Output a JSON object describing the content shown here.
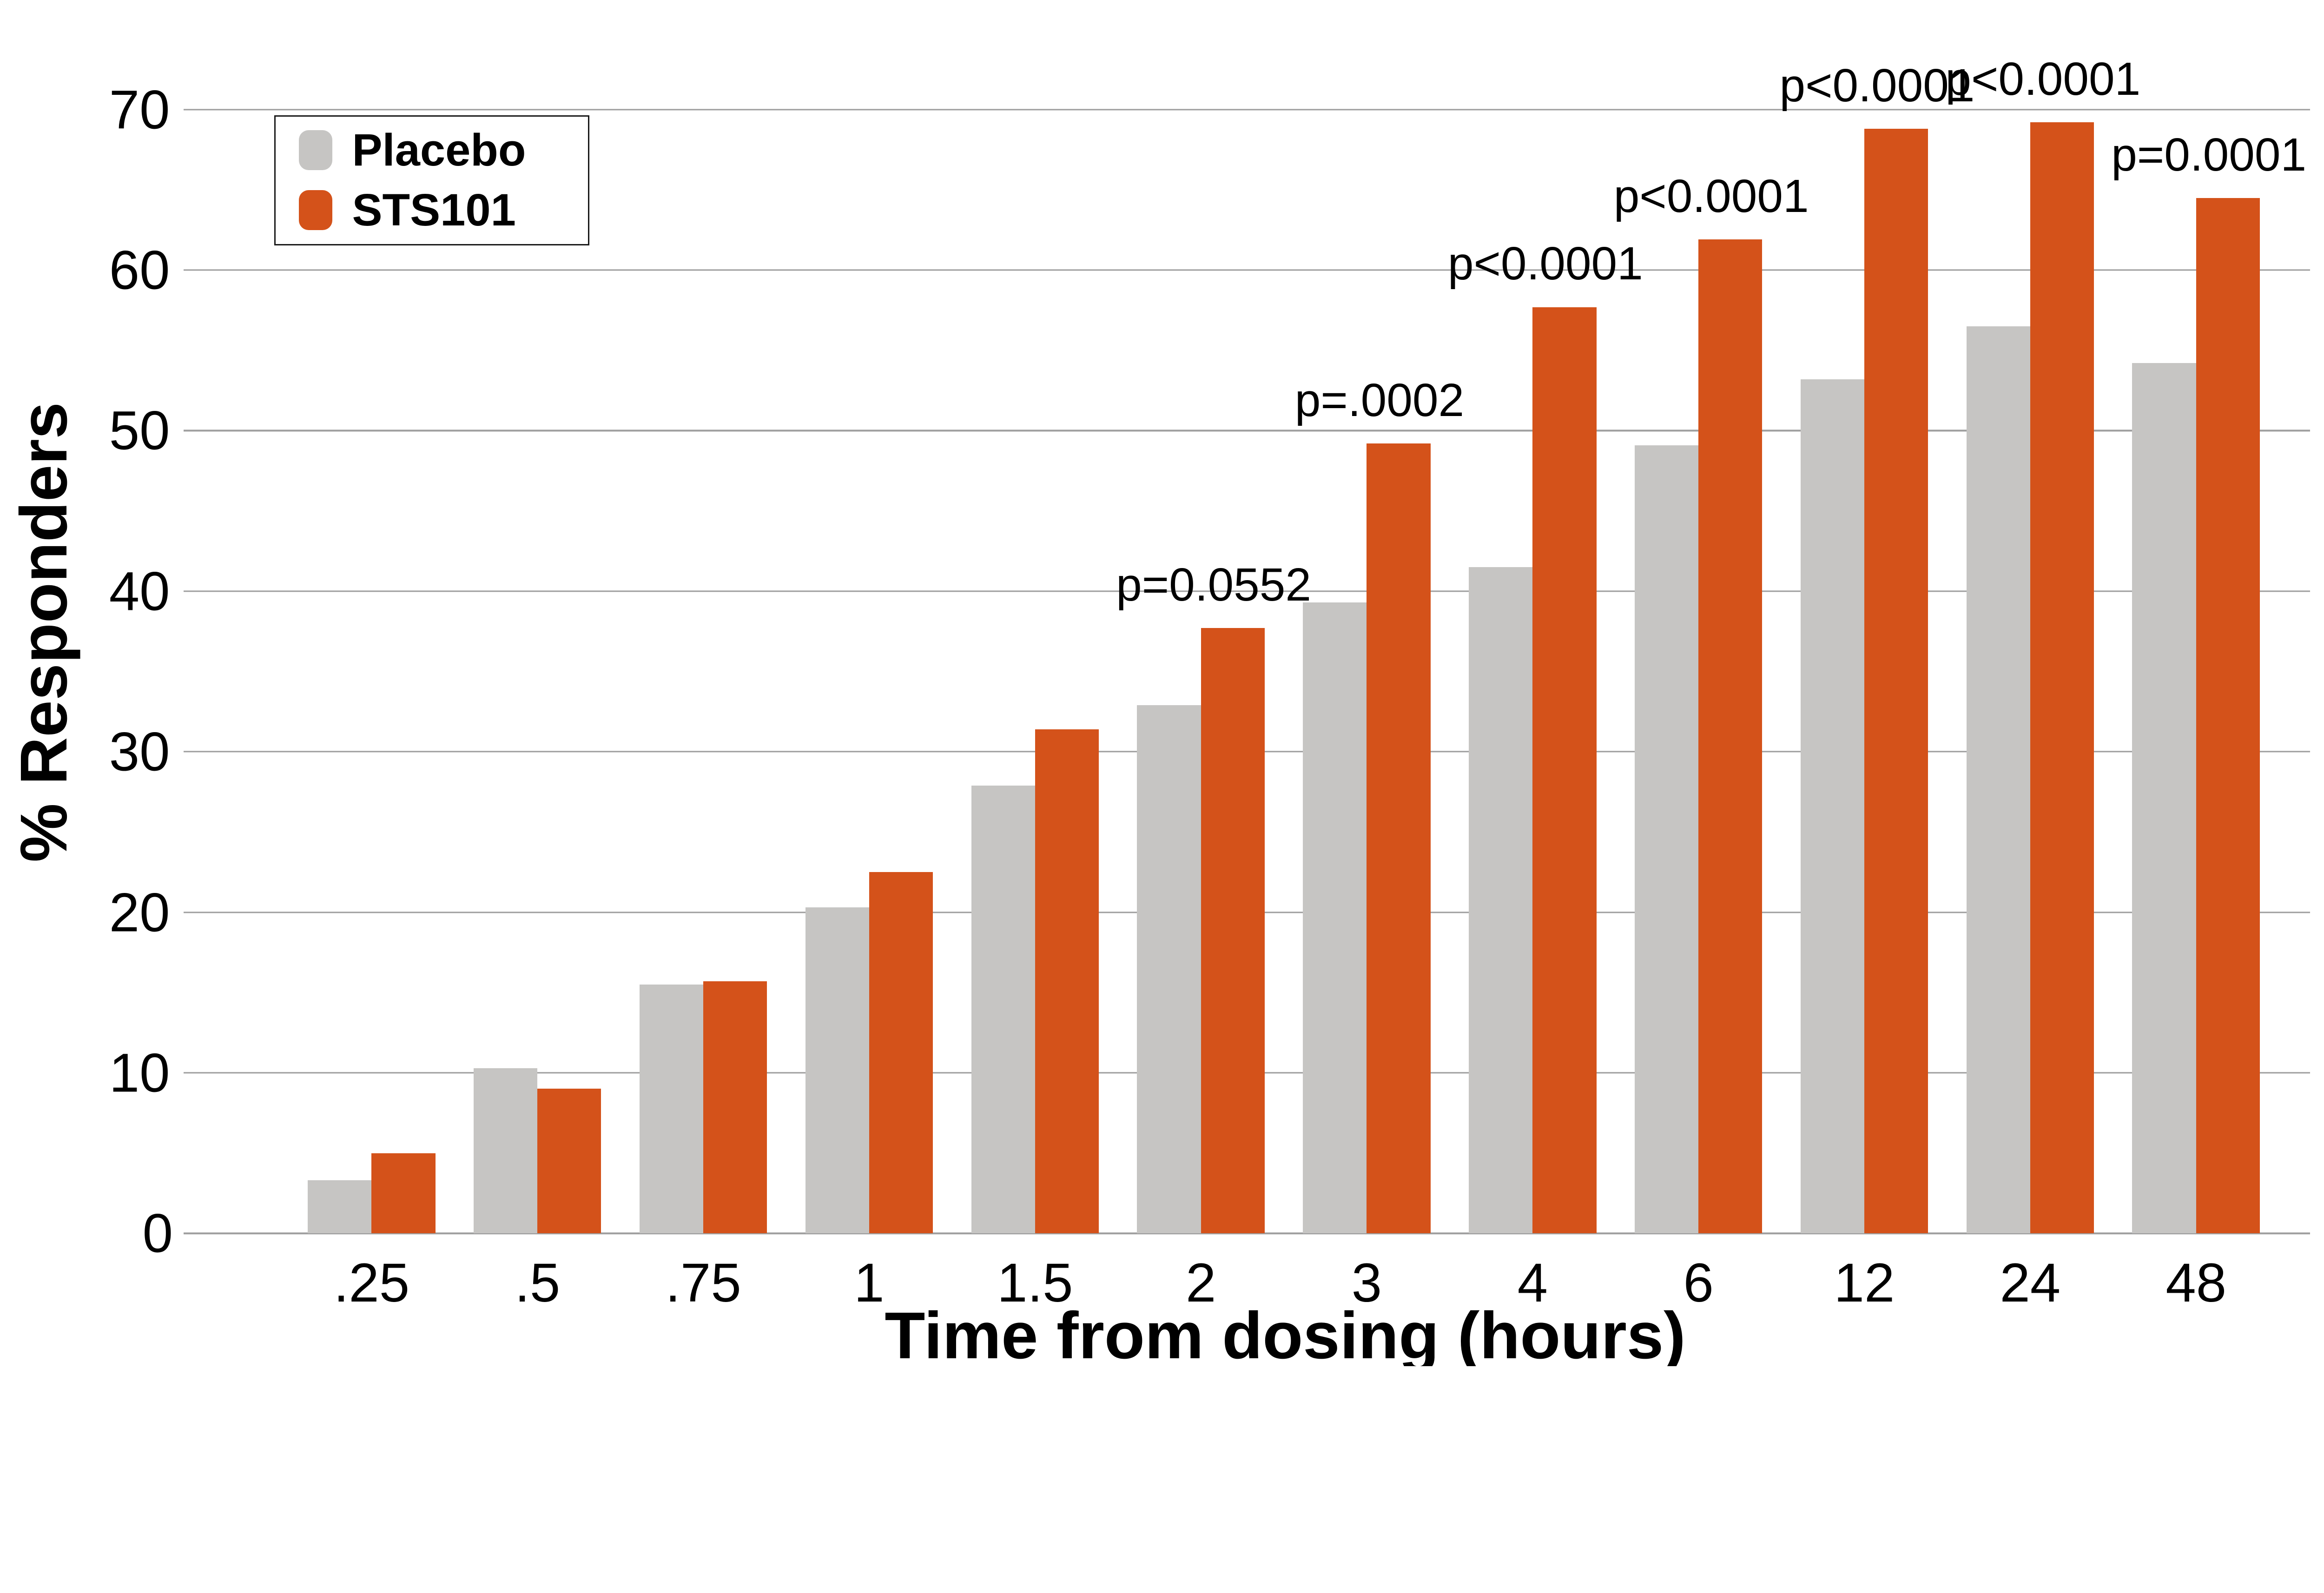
{
  "chart_data": {
    "type": "bar",
    "title": "",
    "xlabel": "Time from dosing (hours)",
    "ylabel": "% Responders",
    "categories": [
      ".25",
      ".5",
      ".75",
      "1",
      "1.5",
      "2",
      "3",
      "4",
      "6",
      "12",
      "24",
      "48"
    ],
    "series": [
      {
        "name": "Placebo",
        "color": "#C6C5C3",
        "values": [
          3.3,
          10.3,
          15.5,
          20.3,
          27.9,
          32.9,
          39.3,
          41.5,
          49.1,
          53.2,
          56.5,
          54.2
        ]
      },
      {
        "name": "STS101",
        "color": "#D4521A",
        "values": [
          5.0,
          9.0,
          15.7,
          22.5,
          31.4,
          37.7,
          49.2,
          57.7,
          61.9,
          68.8,
          69.2,
          64.5
        ]
      }
    ],
    "p_values": [
      null,
      null,
      null,
      null,
      null,
      "p=0.0552",
      "p=.0002",
      "p<0.0001",
      "p<0.0001",
      "p<0.0001",
      "p<0.0001",
      "p=0.0001"
    ],
    "ylim": [
      0,
      70
    ],
    "ytick_step": 10,
    "yticks": [
      "0",
      "10",
      "20",
      "30",
      "40",
      "50",
      "60",
      "70"
    ],
    "grid": "horizontal",
    "gridline_color": "#9E9E9E",
    "legend_position": "top-left",
    "background_color": "#FFFFFF"
  },
  "legend": {
    "items": [
      {
        "label": "Placebo",
        "color": "#C6C5C3"
      },
      {
        "label": "STS101",
        "color": "#D4521A"
      }
    ]
  }
}
